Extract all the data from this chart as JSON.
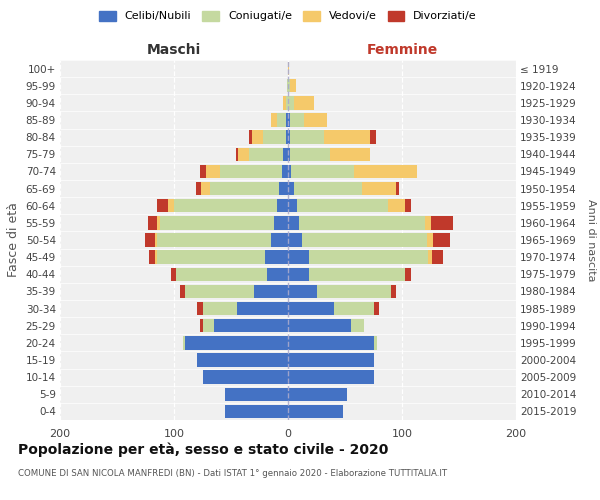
{
  "age_groups": [
    "0-4",
    "5-9",
    "10-14",
    "15-19",
    "20-24",
    "25-29",
    "30-34",
    "35-39",
    "40-44",
    "45-49",
    "50-54",
    "55-59",
    "60-64",
    "65-69",
    "70-74",
    "75-79",
    "80-84",
    "85-89",
    "90-94",
    "95-99",
    "100+"
  ],
  "birth_years": [
    "2015-2019",
    "2010-2014",
    "2005-2009",
    "2000-2004",
    "1995-1999",
    "1990-1994",
    "1985-1989",
    "1980-1984",
    "1975-1979",
    "1970-1974",
    "1965-1969",
    "1960-1964",
    "1955-1959",
    "1950-1954",
    "1945-1949",
    "1940-1944",
    "1935-1939",
    "1930-1934",
    "1925-1929",
    "1920-1924",
    "≤ 1919"
  ],
  "colors": {
    "celibi": "#4472c4",
    "coniugati": "#c5d9a0",
    "vedovi": "#f5c96a",
    "divorziati": "#c0392b"
  },
  "maschi": {
    "celibi": [
      55,
      55,
      75,
      80,
      90,
      65,
      45,
      30,
      18,
      20,
      15,
      12,
      10,
      8,
      5,
      4,
      2,
      2,
      0,
      0,
      0
    ],
    "coniugati": [
      0,
      0,
      0,
      0,
      2,
      10,
      30,
      60,
      80,
      95,
      100,
      100,
      90,
      60,
      55,
      30,
      20,
      8,
      2,
      1,
      0
    ],
    "vedovi": [
      0,
      0,
      0,
      0,
      0,
      0,
      0,
      0,
      0,
      2,
      2,
      3,
      5,
      8,
      12,
      10,
      10,
      5,
      2,
      0,
      0
    ],
    "divorziati": [
      0,
      0,
      0,
      0,
      0,
      2,
      5,
      5,
      5,
      5,
      8,
      8,
      10,
      5,
      5,
      2,
      2,
      0,
      0,
      0,
      0
    ]
  },
  "femmine": {
    "celibi": [
      48,
      52,
      75,
      75,
      75,
      55,
      40,
      25,
      18,
      18,
      12,
      10,
      8,
      5,
      3,
      2,
      2,
      2,
      0,
      0,
      0
    ],
    "coniugati": [
      0,
      0,
      0,
      0,
      3,
      12,
      35,
      65,
      85,
      105,
      110,
      110,
      80,
      60,
      55,
      35,
      30,
      12,
      5,
      2,
      0
    ],
    "vedovi": [
      0,
      0,
      0,
      0,
      0,
      0,
      0,
      0,
      0,
      3,
      5,
      5,
      15,
      30,
      55,
      35,
      40,
      20,
      18,
      5,
      1
    ],
    "divorziati": [
      0,
      0,
      0,
      0,
      0,
      0,
      5,
      5,
      5,
      10,
      15,
      20,
      5,
      2,
      0,
      0,
      5,
      0,
      0,
      0,
      0
    ]
  },
  "title": "Popolazione per età, sesso e stato civile - 2020",
  "subtitle": "COMUNE DI SAN NICOLA MANFREDI (BN) - Dati ISTAT 1° gennaio 2020 - Elaborazione TUTTITALIA.IT",
  "xlabel_left": "Maschi",
  "xlabel_right": "Femmine",
  "ylabel": "Fasce di età",
  "ylabel_right": "Anni di nascita",
  "xlim": 200,
  "legend_labels": [
    "Celibi/Nubili",
    "Coniugati/e",
    "Vedovi/e",
    "Divorziati/e"
  ],
  "bg_color": "#f0f0f0",
  "plot_bg": "#ffffff",
  "grid_color": "#ffffff",
  "celibi_color": "#4472c4",
  "coniugati_color": "#c5d9a0",
  "vedovi_color": "#f5c96a",
  "divorziati_color": "#c0392b"
}
